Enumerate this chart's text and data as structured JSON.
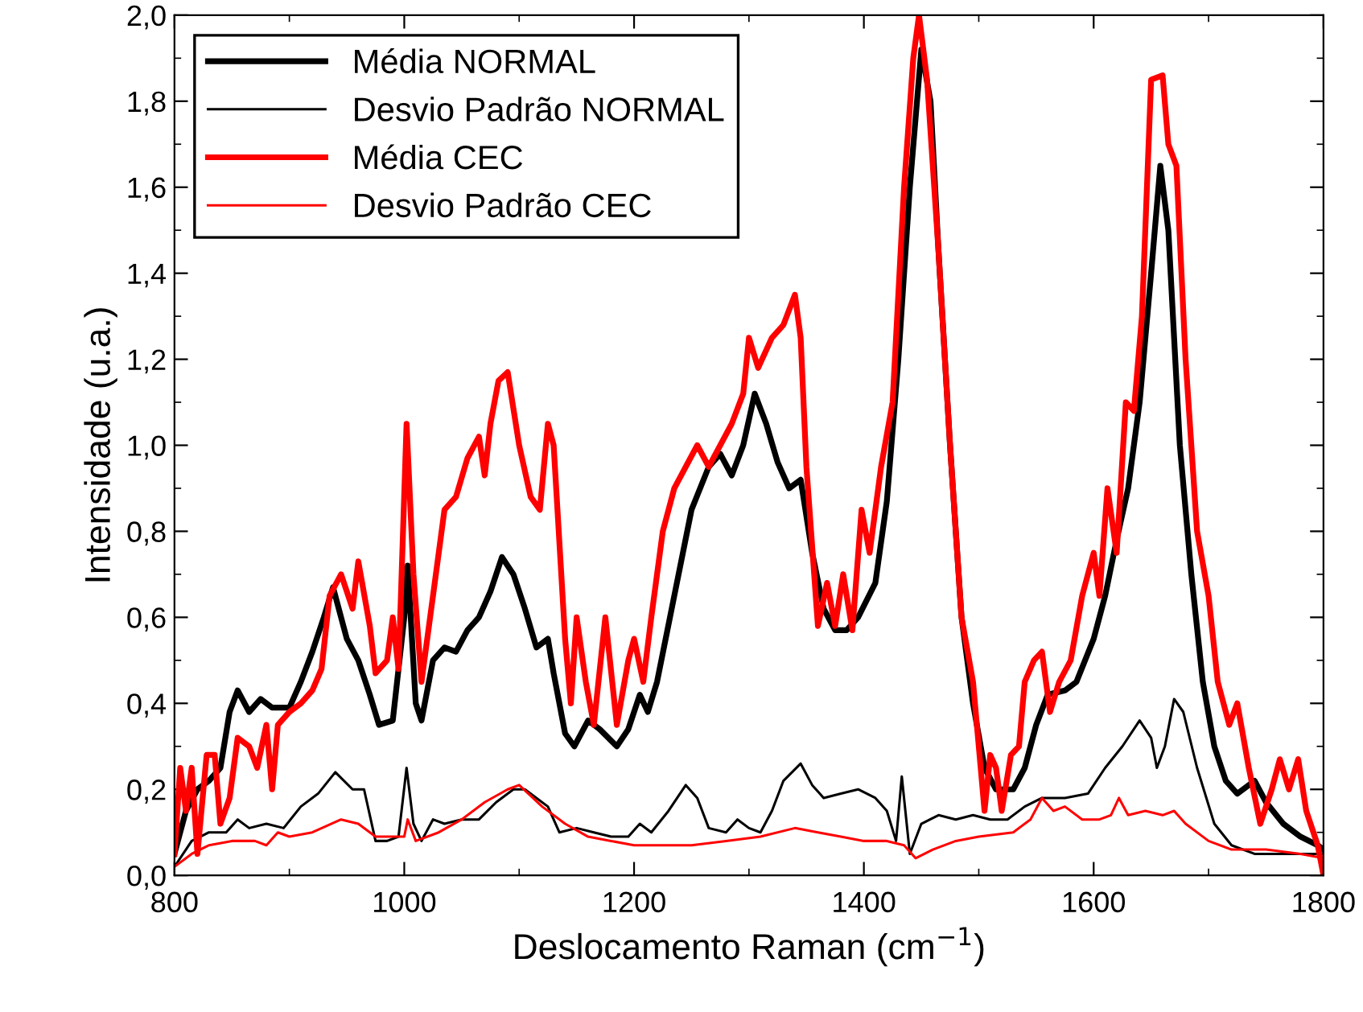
{
  "chart_data": {
    "type": "line",
    "xlabel": "Deslocamento Raman (cm$^{−1}$)",
    "ylabel": "Intensidade (u.a.)",
    "xlim": [
      800,
      1800
    ],
    "xticks": [
      800,
      1000,
      1200,
      1400,
      1600,
      1800
    ],
    "ylim": [
      0,
      2.0
    ],
    "yticks": [
      {
        "value": 0,
        "label": "0,0"
      },
      {
        "value": 0.2,
        "label": "0,2"
      },
      {
        "value": 0.4,
        "label": "0,4"
      },
      {
        "value": 0.6,
        "label": "0,6"
      },
      {
        "value": 0.8,
        "label": "0,8"
      },
      {
        "value": 1.0,
        "label": "1,0"
      },
      {
        "value": 1.2,
        "label": "1,2"
      },
      {
        "value": 1.4,
        "label": "1,4"
      },
      {
        "value": 1.6,
        "label": "1,6"
      },
      {
        "value": 1.8,
        "label": "1,8"
      },
      {
        "value": 2.0,
        "label": "2,0"
      }
    ],
    "grid": false,
    "legend": "top left",
    "marker": "none",
    "line_style": "solid",
    "series": [
      {
        "name": "Média NORMAL",
        "color": "#000000",
        "x": [
          800,
          810,
          820,
          830,
          840,
          848,
          855,
          865,
          875,
          885,
          900,
          910,
          920,
          930,
          938,
          950,
          960,
          970,
          978,
          990,
          1000,
          1003,
          1010,
          1015,
          1025,
          1035,
          1045,
          1055,
          1065,
          1075,
          1085,
          1095,
          1105,
          1115,
          1125,
          1130,
          1140,
          1148,
          1160,
          1170,
          1185,
          1195,
          1205,
          1212,
          1220,
          1235,
          1250,
          1265,
          1275,
          1285,
          1295,
          1305,
          1315,
          1325,
          1335,
          1345,
          1355,
          1365,
          1375,
          1385,
          1395,
          1410,
          1420,
          1430,
          1440,
          1450,
          1458,
          1465,
          1475,
          1485,
          1495,
          1505,
          1515,
          1530,
          1540,
          1550,
          1560,
          1575,
          1585,
          1600,
          1610,
          1620,
          1630,
          1640,
          1650,
          1658,
          1665,
          1675,
          1685,
          1695,
          1705,
          1715,
          1725,
          1740,
          1750,
          1765,
          1780,
          1795,
          1800
        ],
        "values": [
          0.05,
          0.15,
          0.2,
          0.22,
          0.25,
          0.38,
          0.43,
          0.38,
          0.41,
          0.39,
          0.39,
          0.45,
          0.52,
          0.6,
          0.67,
          0.55,
          0.5,
          0.42,
          0.35,
          0.36,
          0.6,
          0.72,
          0.4,
          0.36,
          0.5,
          0.53,
          0.52,
          0.57,
          0.6,
          0.66,
          0.74,
          0.7,
          0.62,
          0.53,
          0.55,
          0.47,
          0.33,
          0.3,
          0.36,
          0.34,
          0.3,
          0.34,
          0.42,
          0.38,
          0.45,
          0.65,
          0.85,
          0.95,
          0.98,
          0.93,
          1.0,
          1.12,
          1.05,
          0.96,
          0.9,
          0.92,
          0.75,
          0.62,
          0.57,
          0.57,
          0.6,
          0.68,
          0.87,
          1.2,
          1.6,
          1.92,
          1.8,
          1.45,
          1.0,
          0.6,
          0.4,
          0.25,
          0.2,
          0.2,
          0.25,
          0.35,
          0.42,
          0.43,
          0.45,
          0.55,
          0.65,
          0.78,
          0.9,
          1.1,
          1.4,
          1.65,
          1.5,
          1.0,
          0.7,
          0.45,
          0.3,
          0.22,
          0.19,
          0.22,
          0.17,
          0.12,
          0.09,
          0.07,
          0.06
        ]
      },
      {
        "name": "Desvio Padrão NORMAL",
        "color": "#000000",
        "x": [
          800,
          815,
          830,
          845,
          855,
          865,
          880,
          895,
          910,
          925,
          940,
          955,
          965,
          975,
          985,
          995,
          1002,
          1008,
          1015,
          1025,
          1035,
          1050,
          1065,
          1080,
          1095,
          1105,
          1115,
          1125,
          1135,
          1150,
          1165,
          1180,
          1195,
          1205,
          1215,
          1230,
          1245,
          1255,
          1265,
          1280,
          1290,
          1300,
          1310,
          1320,
          1330,
          1345,
          1355,
          1365,
          1380,
          1395,
          1410,
          1420,
          1428,
          1433,
          1440,
          1450,
          1465,
          1480,
          1495,
          1510,
          1525,
          1540,
          1555,
          1575,
          1595,
          1610,
          1625,
          1640,
          1650,
          1655,
          1662,
          1670,
          1678,
          1690,
          1705,
          1720,
          1740,
          1760,
          1780,
          1800
        ],
        "values": [
          0.02,
          0.08,
          0.1,
          0.1,
          0.13,
          0.11,
          0.12,
          0.11,
          0.16,
          0.19,
          0.24,
          0.2,
          0.2,
          0.08,
          0.08,
          0.09,
          0.25,
          0.12,
          0.08,
          0.13,
          0.12,
          0.13,
          0.13,
          0.17,
          0.2,
          0.2,
          0.18,
          0.16,
          0.1,
          0.11,
          0.1,
          0.09,
          0.09,
          0.12,
          0.1,
          0.15,
          0.21,
          0.18,
          0.11,
          0.1,
          0.13,
          0.11,
          0.1,
          0.15,
          0.22,
          0.26,
          0.21,
          0.18,
          0.19,
          0.2,
          0.18,
          0.15,
          0.08,
          0.23,
          0.05,
          0.12,
          0.14,
          0.13,
          0.14,
          0.13,
          0.13,
          0.16,
          0.18,
          0.18,
          0.19,
          0.25,
          0.3,
          0.36,
          0.32,
          0.25,
          0.3,
          0.41,
          0.38,
          0.25,
          0.12,
          0.07,
          0.05,
          0.05,
          0.05,
          0.05
        ]
      },
      {
        "name": "Média CEC",
        "color": "#ff0000",
        "x": [
          800,
          805,
          810,
          815,
          820,
          828,
          835,
          840,
          848,
          855,
          865,
          872,
          880,
          885,
          890,
          900,
          910,
          920,
          928,
          935,
          945,
          955,
          960,
          970,
          975,
          985,
          990,
          995,
          1002,
          1008,
          1015,
          1025,
          1035,
          1045,
          1055,
          1065,
          1070,
          1075,
          1082,
          1090,
          1100,
          1110,
          1118,
          1125,
          1130,
          1140,
          1145,
          1150,
          1158,
          1165,
          1175,
          1185,
          1195,
          1200,
          1208,
          1215,
          1225,
          1235,
          1245,
          1255,
          1265,
          1275,
          1285,
          1295,
          1300,
          1308,
          1320,
          1330,
          1340,
          1345,
          1350,
          1360,
          1368,
          1375,
          1382,
          1390,
          1398,
          1405,
          1415,
          1425,
          1435,
          1443,
          1448,
          1455,
          1465,
          1475,
          1485,
          1495,
          1500,
          1505,
          1510,
          1515,
          1520,
          1528,
          1535,
          1540,
          1548,
          1555,
          1562,
          1570,
          1580,
          1590,
          1600,
          1605,
          1612,
          1620,
          1628,
          1635,
          1642,
          1650,
          1660,
          1665,
          1672,
          1680,
          1690,
          1700,
          1708,
          1718,
          1725,
          1735,
          1745,
          1755,
          1762,
          1770,
          1778,
          1785,
          1795,
          1800
        ],
        "values": [
          0.05,
          0.25,
          0.15,
          0.25,
          0.05,
          0.28,
          0.28,
          0.12,
          0.18,
          0.32,
          0.3,
          0.25,
          0.35,
          0.2,
          0.35,
          0.38,
          0.4,
          0.43,
          0.48,
          0.65,
          0.7,
          0.62,
          0.73,
          0.58,
          0.47,
          0.5,
          0.6,
          0.48,
          1.05,
          0.7,
          0.45,
          0.65,
          0.85,
          0.88,
          0.97,
          1.02,
          0.93,
          1.05,
          1.15,
          1.17,
          1.0,
          0.88,
          0.85,
          1.05,
          1.0,
          0.55,
          0.4,
          0.6,
          0.45,
          0.35,
          0.6,
          0.35,
          0.5,
          0.55,
          0.45,
          0.6,
          0.8,
          0.9,
          0.95,
          1.0,
          0.95,
          1.0,
          1.05,
          1.12,
          1.25,
          1.18,
          1.25,
          1.28,
          1.35,
          1.25,
          0.95,
          0.58,
          0.68,
          0.58,
          0.7,
          0.57,
          0.85,
          0.75,
          0.95,
          1.1,
          1.6,
          1.9,
          2.0,
          1.85,
          1.45,
          1.0,
          0.6,
          0.45,
          0.3,
          0.15,
          0.28,
          0.25,
          0.15,
          0.28,
          0.3,
          0.45,
          0.5,
          0.52,
          0.38,
          0.45,
          0.5,
          0.65,
          0.75,
          0.65,
          0.9,
          0.75,
          1.1,
          1.08,
          1.3,
          1.85,
          1.86,
          1.7,
          1.65,
          1.2,
          0.8,
          0.65,
          0.45,
          0.35,
          0.4,
          0.25,
          0.12,
          0.2,
          0.27,
          0.2,
          0.27,
          0.15,
          0.07,
          0.0
        ]
      },
      {
        "name": "Desvio Padrão CEC",
        "color": "#ff0000",
        "x": [
          800,
          815,
          830,
          850,
          870,
          880,
          890,
          900,
          920,
          945,
          960,
          975,
          990,
          1000,
          1003,
          1010,
          1030,
          1050,
          1070,
          1090,
          1100,
          1120,
          1140,
          1160,
          1180,
          1200,
          1220,
          1250,
          1280,
          1310,
          1340,
          1360,
          1380,
          1400,
          1420,
          1435,
          1445,
          1460,
          1480,
          1500,
          1530,
          1545,
          1555,
          1565,
          1575,
          1590,
          1605,
          1615,
          1622,
          1630,
          1645,
          1660,
          1670,
          1680,
          1700,
          1720,
          1750,
          1780,
          1800
        ],
        "values": [
          0.02,
          0.05,
          0.07,
          0.08,
          0.08,
          0.07,
          0.1,
          0.09,
          0.1,
          0.13,
          0.12,
          0.09,
          0.09,
          0.09,
          0.13,
          0.08,
          0.1,
          0.13,
          0.17,
          0.2,
          0.21,
          0.16,
          0.12,
          0.09,
          0.08,
          0.07,
          0.07,
          0.07,
          0.08,
          0.09,
          0.11,
          0.1,
          0.09,
          0.08,
          0.08,
          0.07,
          0.04,
          0.06,
          0.08,
          0.09,
          0.1,
          0.13,
          0.18,
          0.15,
          0.16,
          0.13,
          0.13,
          0.14,
          0.18,
          0.14,
          0.15,
          0.14,
          0.15,
          0.12,
          0.08,
          0.06,
          0.06,
          0.05,
          0.04
        ]
      }
    ]
  }
}
